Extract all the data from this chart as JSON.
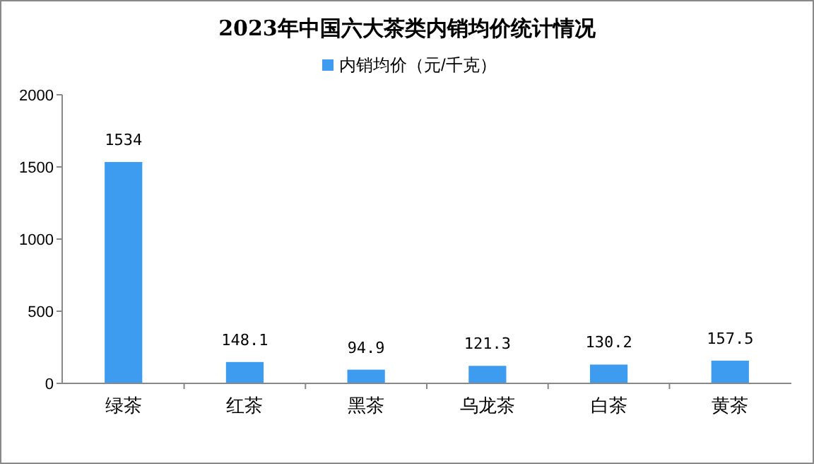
{
  "chart_data": {
    "type": "bar",
    "title": "2023年中国六大茶类内销均价统计情况",
    "categories": [
      "绿茶",
      "红茶",
      "黑茶",
      "乌龙茶",
      "白茶",
      "黄茶"
    ],
    "series": [
      {
        "name": "内销均价（元/千克）",
        "color": "#3d9cf0",
        "values": [
          1534,
          148.1,
          94.9,
          121.3,
          130.2,
          157.5
        ]
      }
    ],
    "value_labels": [
      "1534",
      "148.1",
      "94.9",
      "121.3",
      "130.2",
      "157.5"
    ],
    "ylim": [
      0,
      2000
    ],
    "yticks": [
      0,
      500,
      1000,
      1500,
      2000
    ],
    "grid": false,
    "legend": "top"
  }
}
